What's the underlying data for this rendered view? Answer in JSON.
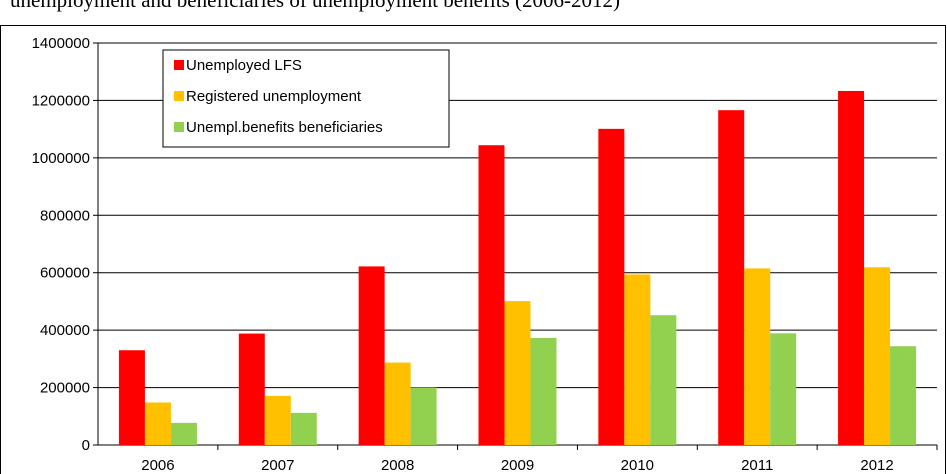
{
  "title": "unemployment and beneficiaries of unemployment benefits (2006-2012)",
  "chart_data": {
    "type": "bar",
    "title": "unemployment and beneficiaries of unemployment benefits (2006-2012)",
    "xlabel": "",
    "ylabel": "",
    "categories": [
      "2006",
      "2007",
      "2008",
      "2009",
      "2010",
      "2011",
      "2012"
    ],
    "series": [
      {
        "name": "Unemployed LFS",
        "color": "#ff0000",
        "values": [
          330000,
          388000,
          622000,
          1044000,
          1101000,
          1166000,
          1233000
        ]
      },
      {
        "name": "Registered unemployment",
        "color": "#ffc000",
        "values": [
          148000,
          171000,
          287000,
          501000,
          594000,
          615000,
          619000
        ]
      },
      {
        "name": "Unempl.benefits beneficiaries",
        "color": "#92d050",
        "values": [
          77000,
          112000,
          200000,
          373000,
          452000,
          389000,
          344000
        ]
      }
    ],
    "ylim": [
      0,
      1400000
    ],
    "yticks": [
      "0",
      "200000",
      "400000",
      "600000",
      "800000",
      "1000000",
      "1200000",
      "1400000"
    ],
    "grid": true,
    "legend_position": "top-left"
  }
}
